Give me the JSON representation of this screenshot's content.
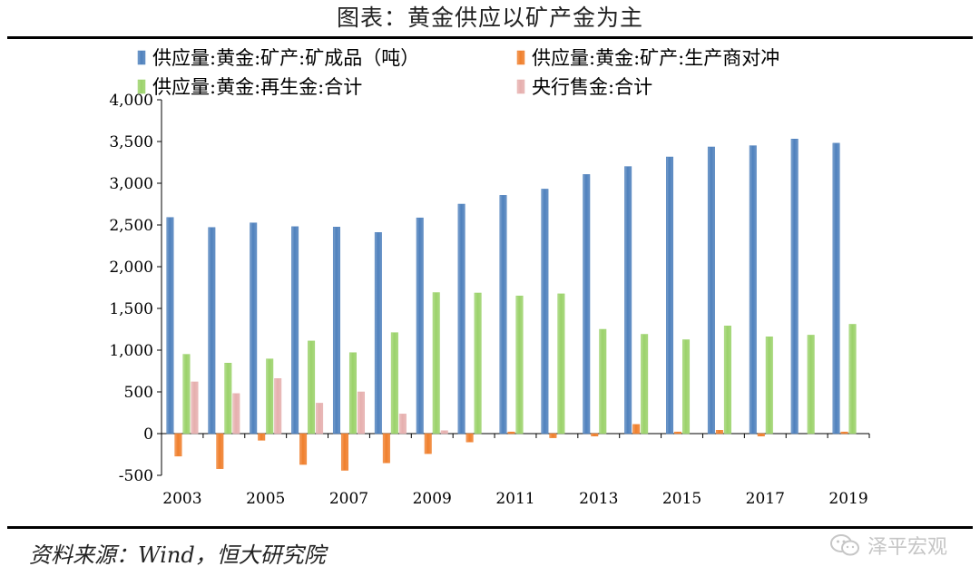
{
  "header": {
    "title": "图表：黄金供应以矿产金为主"
  },
  "footer": {
    "source": "资料来源：Wind，恒大研究院",
    "watermark": "泽平宏观"
  },
  "chart_data": {
    "type": "bar",
    "title": "图表：黄金供应以矿产金为主",
    "xlabel": "",
    "ylabel": "",
    "ylim": [
      -500,
      4000
    ],
    "yticks": [
      -500,
      0,
      500,
      1000,
      1500,
      2000,
      2500,
      3000,
      3500,
      4000
    ],
    "ytick_labels": [
      "-500",
      "0",
      "500",
      "1,000",
      "1,500",
      "2,000",
      "2,500",
      "3,000",
      "3,500",
      "4,000"
    ],
    "categories": [
      "2003",
      "2004",
      "2005",
      "2006",
      "2007",
      "2008",
      "2009",
      "2010",
      "2011",
      "2012",
      "2013",
      "2014",
      "2015",
      "2016",
      "2017",
      "2018",
      "2019"
    ],
    "xtick_labels": [
      "2003",
      "2005",
      "2007",
      "2009",
      "2011",
      "2013",
      "2015",
      "2017",
      "2019"
    ],
    "legend_position": "top",
    "grid": false,
    "series": [
      {
        "name": "供应量:黄金:矿产:矿成品（吨）",
        "color": "#4F81BD",
        "values": [
          2590,
          2470,
          2525,
          2480,
          2475,
          2410,
          2585,
          2750,
          2855,
          2930,
          3105,
          3200,
          3315,
          3435,
          3450,
          3530,
          3480
        ]
      },
      {
        "name": "供应量:黄金:矿产:生产商对冲",
        "color": "#F07F2C",
        "values": [
          -270,
          -420,
          -80,
          -370,
          -440,
          -350,
          -240,
          -100,
          20,
          -50,
          -30,
          110,
          20,
          40,
          -30,
          0,
          20
        ]
      },
      {
        "name": "供应量:黄金:再生金:合计",
        "color": "#9BD26A",
        "values": [
          950,
          845,
          895,
          1110,
          970,
          1210,
          1690,
          1685,
          1650,
          1675,
          1250,
          1190,
          1125,
          1290,
          1160,
          1180,
          1310
        ]
      },
      {
        "name": "央行售金:合计",
        "color": "#E6AFAE",
        "values": [
          620,
          480,
          660,
          365,
          500,
          235,
          35,
          0,
          0,
          0,
          0,
          0,
          0,
          0,
          0,
          0,
          0
        ]
      }
    ]
  }
}
